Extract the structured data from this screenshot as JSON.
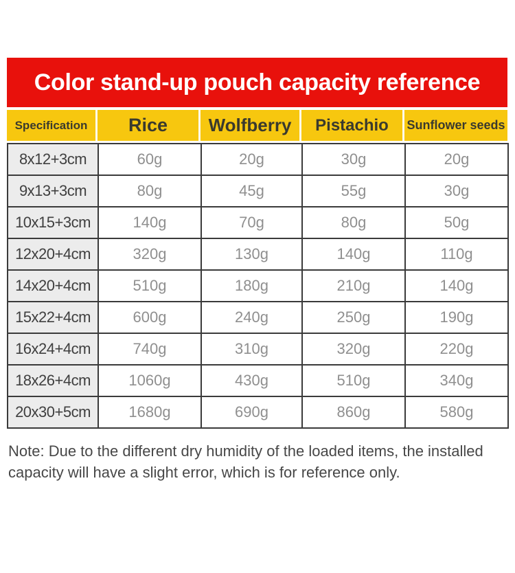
{
  "banner": {
    "title": "Color stand-up pouch capacity reference"
  },
  "colors": {
    "banner_bg": "#e8110c",
    "banner_text": "#ffffff",
    "header_bg": "#f7c70f",
    "header_text": "#3a3a2e",
    "spec_bg": "#ececec",
    "spec_text": "#3f3f3f",
    "value_text": "#8f8f8f",
    "grid_border": "#3a3a3a",
    "note_text": "#474747"
  },
  "chart_data": {
    "type": "table",
    "title": "Color stand-up pouch capacity reference",
    "columns": [
      "Specification",
      "Rice",
      "Wolfberry",
      "Pistachio",
      "Sunflower seeds"
    ],
    "rows": [
      [
        "8x12+3cm",
        "60g",
        "20g",
        "30g",
        "20g"
      ],
      [
        "9x13+3cm",
        "80g",
        "45g",
        "55g",
        "30g"
      ],
      [
        "10x15+3cm",
        "140g",
        "70g",
        "80g",
        "50g"
      ],
      [
        "12x20+4cm",
        "320g",
        "130g",
        "140g",
        "110g"
      ],
      [
        "14x20+4cm",
        "510g",
        "180g",
        "210g",
        "140g"
      ],
      [
        "15x22+4cm",
        "600g",
        "240g",
        "250g",
        "190g"
      ],
      [
        "16x24+4cm",
        "740g",
        "310g",
        "320g",
        "220g"
      ],
      [
        "18x26+4cm",
        "1060g",
        "430g",
        "510g",
        "340g"
      ],
      [
        "20x30+5cm",
        "1680g",
        "690g",
        "860g",
        "580g"
      ]
    ]
  },
  "note": {
    "line1": "Note: Due to the different dry humidity of the loaded items, the installed",
    "line2": "capacity will have a slight error, which is for reference only."
  }
}
